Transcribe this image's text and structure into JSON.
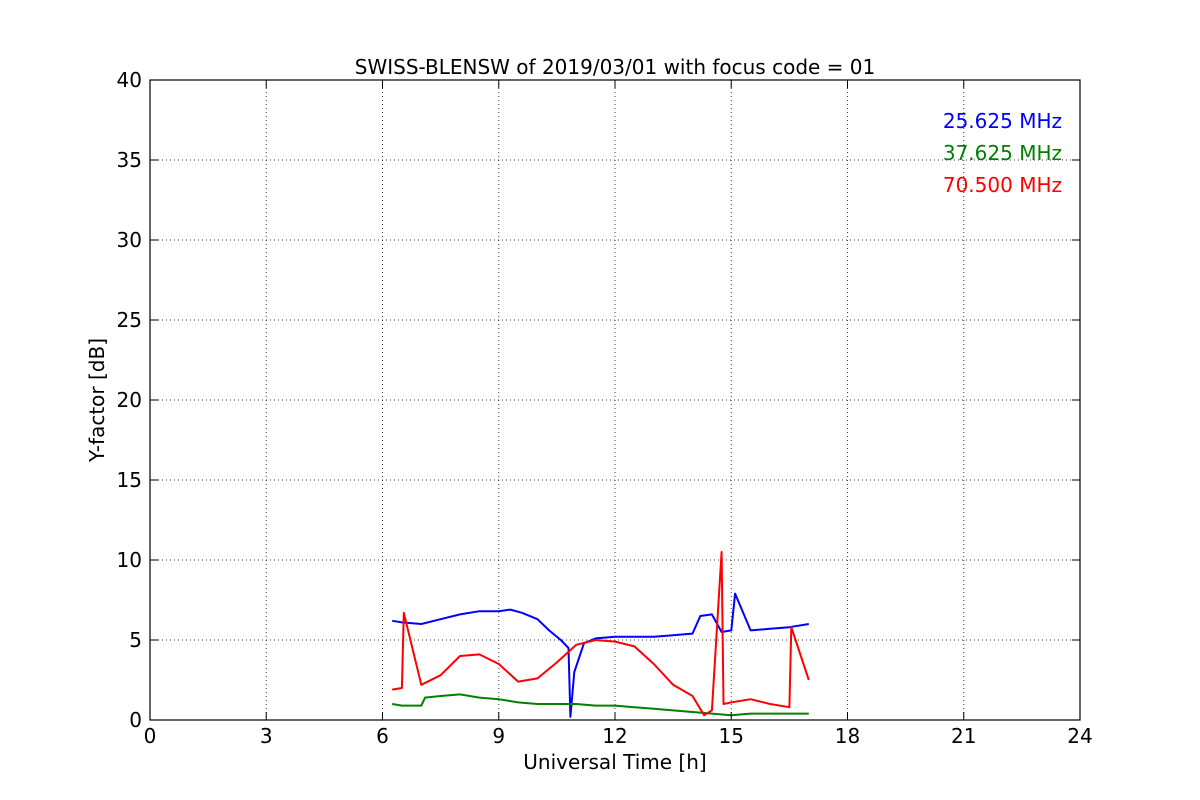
{
  "chart_data": {
    "type": "line",
    "title": "SWISS-BLENSW of 2019/03/01 with focus code = 01",
    "xlabel": "Universal Time [h]",
    "ylabel": "Y-factor [dB]",
    "xlim": [
      0,
      24
    ],
    "ylim": [
      0,
      40
    ],
    "xticks": [
      0,
      3,
      6,
      9,
      12,
      15,
      18,
      21,
      24
    ],
    "yticks": [
      0,
      5,
      10,
      15,
      20,
      25,
      30,
      35,
      40
    ],
    "xtick_labels": [
      "0",
      "3",
      "6",
      "9",
      "12",
      "15",
      "18",
      "21",
      "24"
    ],
    "ytick_labels": [
      "0",
      "5",
      "10",
      "15",
      "20",
      "25",
      "30",
      "35",
      "40"
    ],
    "grid": true,
    "legend_position": "top-right",
    "series": [
      {
        "name": "25.625 MHz",
        "color": "#0000ff",
        "x": [
          6.25,
          6.5,
          7.0,
          7.5,
          8.0,
          8.5,
          9.0,
          9.3,
          9.6,
          10.0,
          10.3,
          10.6,
          10.8,
          10.85,
          10.95,
          11.2,
          11.5,
          12.0,
          12.5,
          13.0,
          13.5,
          14.0,
          14.2,
          14.5,
          14.75,
          15.0,
          15.1,
          15.5,
          16.0,
          16.5,
          17.0
        ],
        "y": [
          6.2,
          6.1,
          6.0,
          6.3,
          6.6,
          6.8,
          6.8,
          6.9,
          6.7,
          6.3,
          5.6,
          5.0,
          4.5,
          0.2,
          3.0,
          4.8,
          5.1,
          5.2,
          5.2,
          5.2,
          5.3,
          5.4,
          6.5,
          6.6,
          5.5,
          5.6,
          7.9,
          5.6,
          5.7,
          5.8,
          6.0
        ]
      },
      {
        "name": "37.625 MHz",
        "color": "#008000",
        "x": [
          6.25,
          6.5,
          7.0,
          7.1,
          7.5,
          8.0,
          8.5,
          9.0,
          9.5,
          10.0,
          10.5,
          11.0,
          11.5,
          12.0,
          12.5,
          13.0,
          13.5,
          14.0,
          14.5,
          15.0,
          15.5,
          16.0,
          16.5,
          17.0
        ],
        "y": [
          1.0,
          0.9,
          0.9,
          1.4,
          1.5,
          1.6,
          1.4,
          1.3,
          1.1,
          1.0,
          1.0,
          1.0,
          0.9,
          0.9,
          0.8,
          0.7,
          0.6,
          0.5,
          0.4,
          0.3,
          0.4,
          0.4,
          0.4,
          0.4
        ]
      },
      {
        "name": "70.500 MHz",
        "color": "#ff0000",
        "x": [
          6.25,
          6.5,
          6.55,
          7.0,
          7.5,
          8.0,
          8.5,
          9.0,
          9.5,
          10.0,
          10.5,
          11.0,
          11.5,
          12.0,
          12.5,
          13.0,
          13.5,
          14.0,
          14.3,
          14.5,
          14.75,
          14.8,
          15.0,
          15.5,
          16.0,
          16.5,
          16.55,
          17.0
        ],
        "y": [
          1.9,
          2.0,
          6.7,
          2.2,
          2.8,
          4.0,
          4.1,
          3.5,
          2.4,
          2.6,
          3.6,
          4.7,
          5.0,
          4.9,
          4.6,
          3.5,
          2.2,
          1.5,
          0.3,
          0.6,
          10.5,
          1.0,
          1.1,
          1.3,
          1.0,
          0.8,
          5.8,
          2.5
        ]
      }
    ]
  }
}
